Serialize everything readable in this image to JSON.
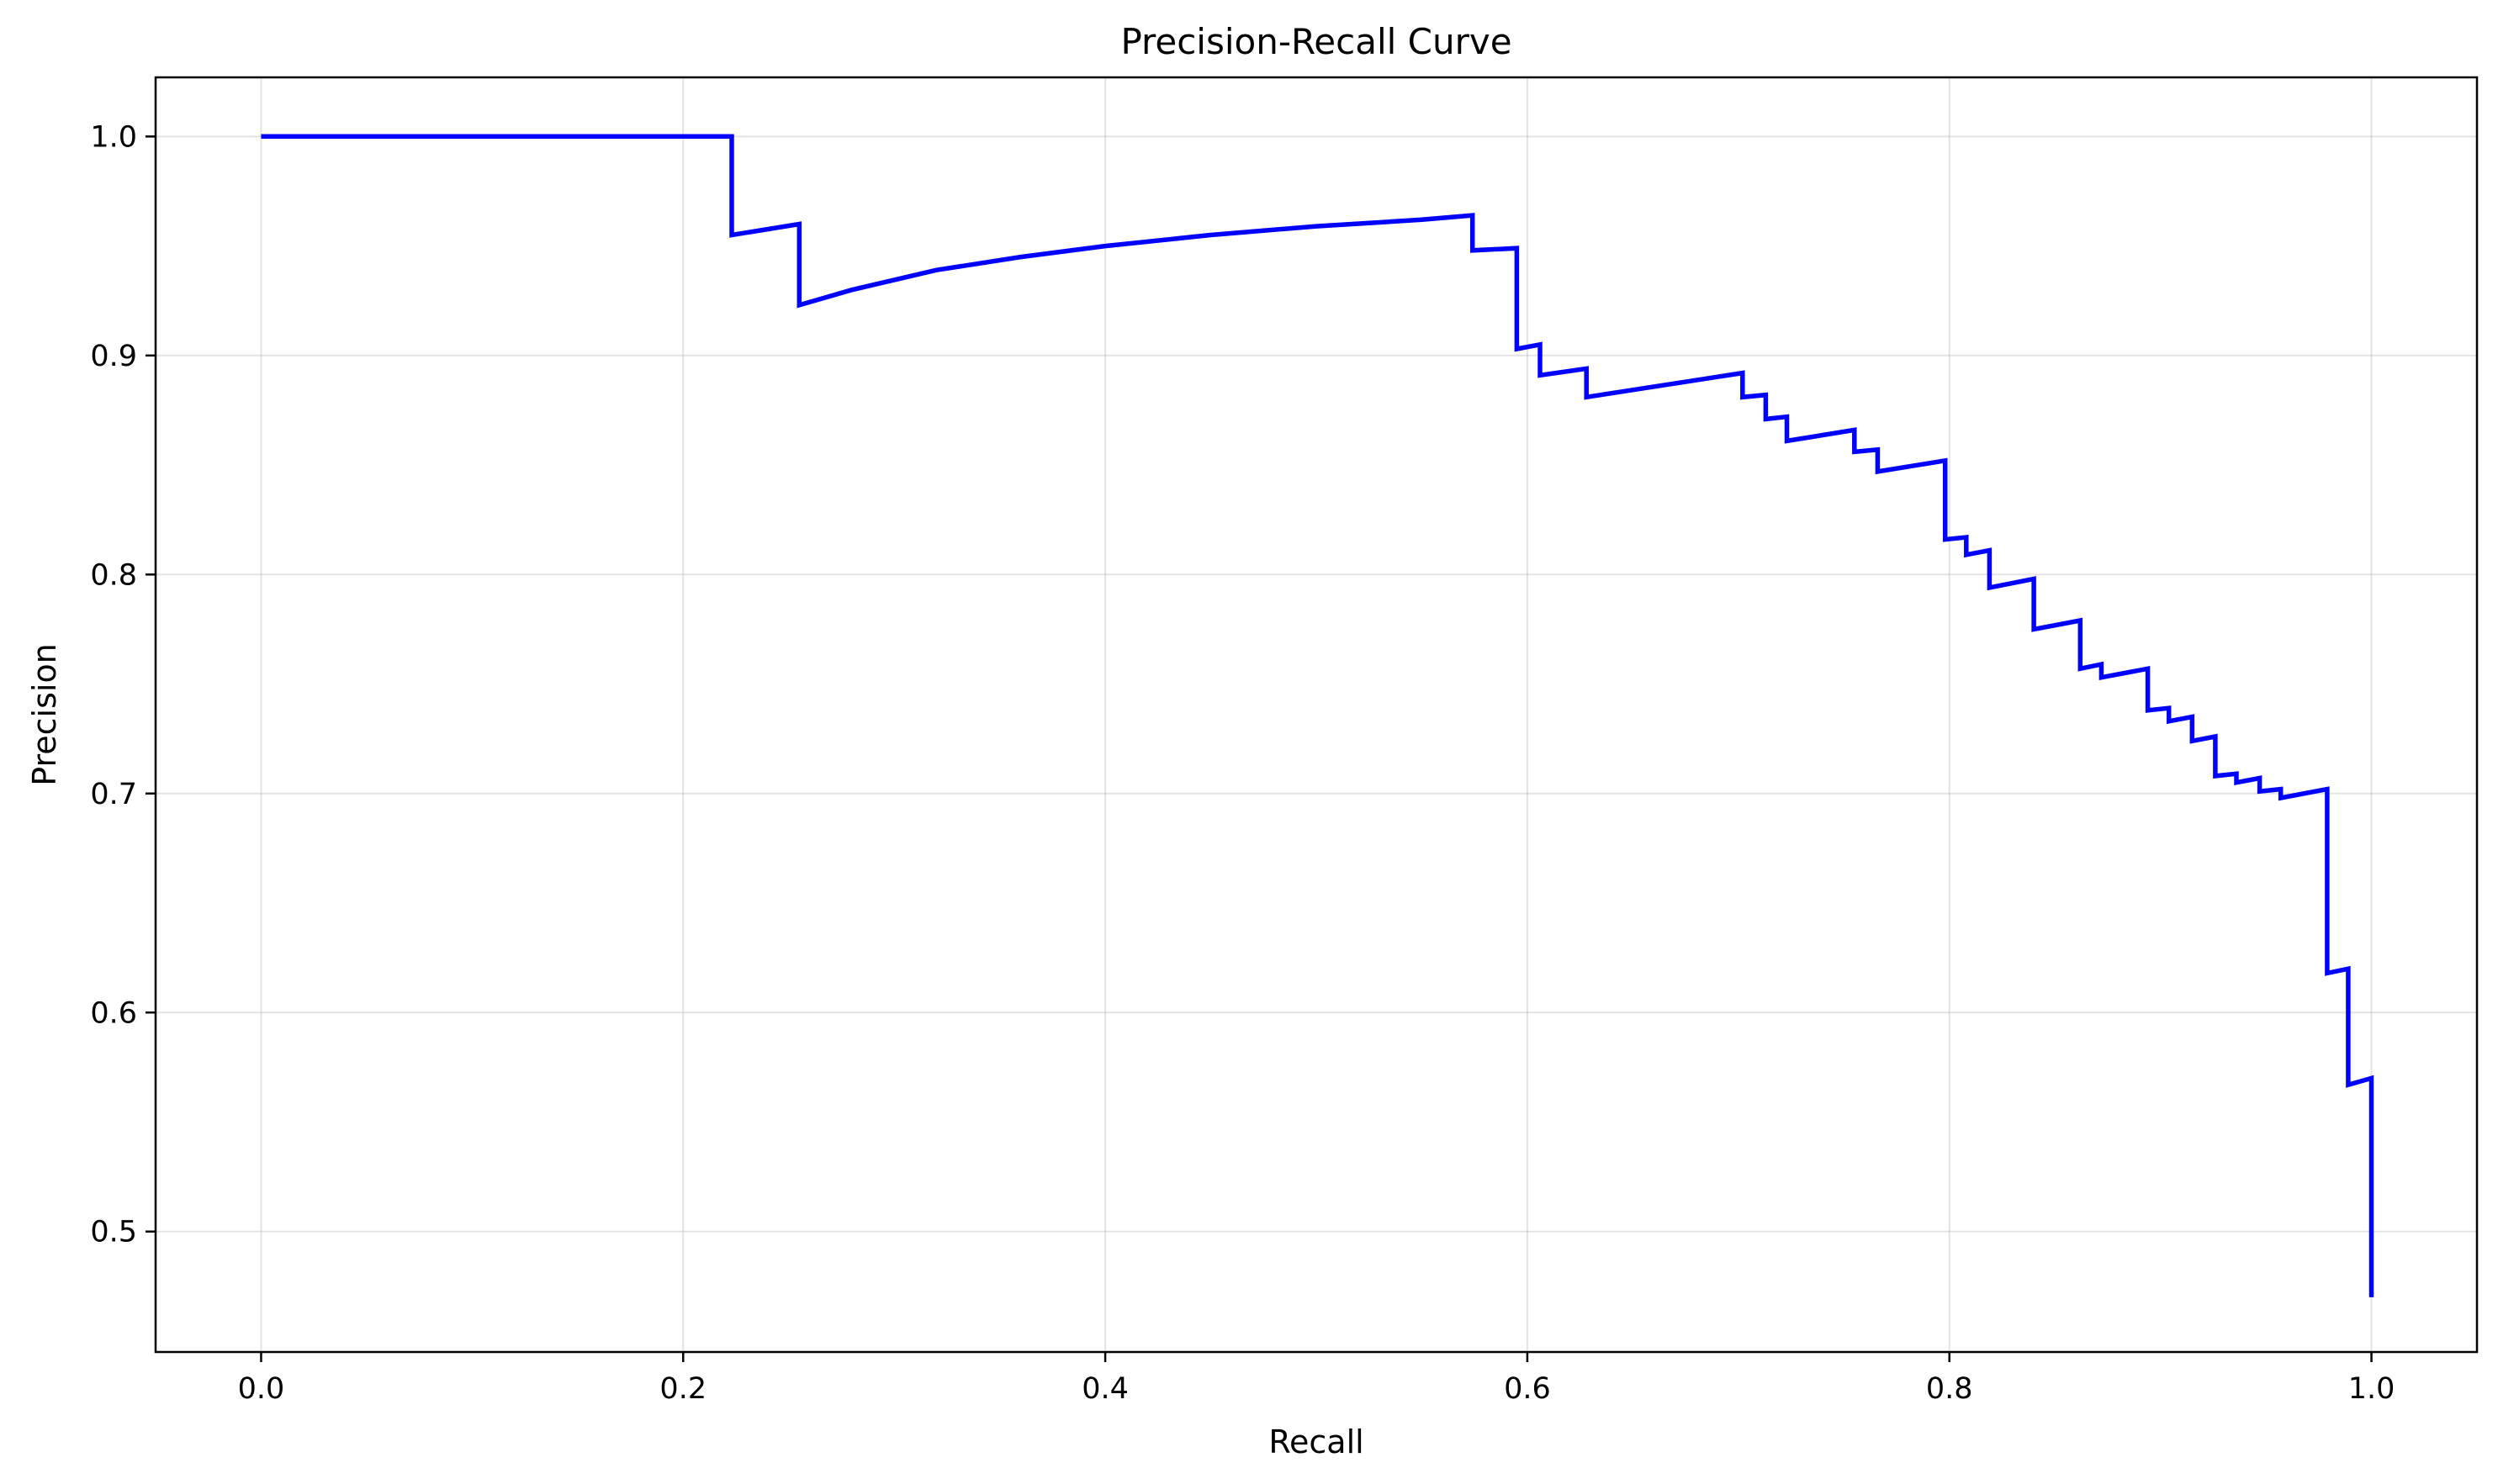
{
  "chart_data": {
    "type": "line",
    "title": "Precision-Recall Curve",
    "xlabel": "Recall",
    "ylabel": "Precision",
    "xlim": [
      -0.05,
      1.05
    ],
    "ylim": [
      0.445,
      1.027
    ],
    "grid": true,
    "xticks": [
      0.0,
      0.2,
      0.4,
      0.6,
      0.8,
      1.0
    ],
    "xtick_labels": [
      "0.0",
      "0.2",
      "0.4",
      "0.6",
      "0.8",
      "1.0"
    ],
    "yticks": [
      0.5,
      0.6,
      0.7,
      0.8,
      0.9,
      1.0
    ],
    "ytick_labels": [
      "0.5",
      "0.6",
      "0.7",
      "0.8",
      "0.9",
      "1.0"
    ],
    "series": [
      {
        "color": "#0000ff",
        "x": [
          0.0,
          0.223,
          0.223,
          0.255,
          0.255,
          0.28,
          0.32,
          0.36,
          0.4,
          0.45,
          0.5,
          0.55,
          0.574,
          0.574,
          0.595,
          0.595,
          0.606,
          0.606,
          0.628,
          0.628,
          0.702,
          0.702,
          0.713,
          0.713,
          0.723,
          0.723,
          0.755,
          0.755,
          0.766,
          0.766,
          0.798,
          0.798,
          0.808,
          0.808,
          0.819,
          0.819,
          0.84,
          0.84,
          0.862,
          0.862,
          0.872,
          0.872,
          0.894,
          0.894,
          0.904,
          0.904,
          0.915,
          0.915,
          0.926,
          0.926,
          0.936,
          0.936,
          0.947,
          0.947,
          0.957,
          0.957,
          0.979,
          0.979,
          0.989,
          0.989,
          1.0,
          1.0
        ],
        "y": [
          1.0,
          1.0,
          0.955,
          0.96,
          0.923,
          0.93,
          0.939,
          0.945,
          0.95,
          0.955,
          0.959,
          0.962,
          0.964,
          0.948,
          0.949,
          0.903,
          0.905,
          0.891,
          0.894,
          0.881,
          0.892,
          0.881,
          0.882,
          0.871,
          0.872,
          0.861,
          0.866,
          0.856,
          0.857,
          0.847,
          0.852,
          0.816,
          0.817,
          0.809,
          0.811,
          0.794,
          0.798,
          0.775,
          0.779,
          0.757,
          0.759,
          0.753,
          0.757,
          0.738,
          0.739,
          0.733,
          0.735,
          0.724,
          0.726,
          0.708,
          0.709,
          0.705,
          0.707,
          0.701,
          0.702,
          0.698,
          0.702,
          0.618,
          0.62,
          0.567,
          0.57,
          0.47
        ]
      }
    ]
  }
}
